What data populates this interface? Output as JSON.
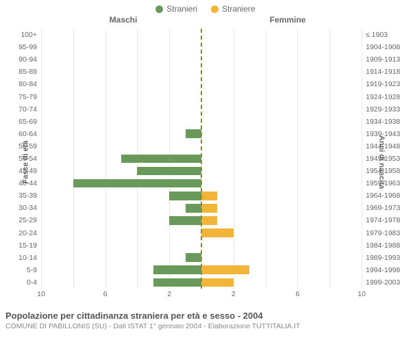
{
  "legend": [
    {
      "label": "Stranieri",
      "color": "#6a9a5b"
    },
    {
      "label": "Straniere",
      "color": "#f2b53a"
    }
  ],
  "headers": {
    "left": "Maschi",
    "right": "Femmine"
  },
  "axis_titles": {
    "left": "Fasce di età",
    "right": "Anni di nascita"
  },
  "chart": {
    "type": "pyramid-bar",
    "max_value": 10,
    "xticks": [
      10,
      6,
      2,
      2,
      6,
      10
    ],
    "xtick_positions_pct": [
      0,
      20,
      40,
      60,
      80,
      100
    ],
    "grid_positions_pct": [
      0,
      10,
      20,
      30,
      40,
      60,
      70,
      80,
      90,
      100
    ],
    "background_color": "#ffffff",
    "grid_color": "#e8e8e8",
    "center_line_color": "#888833",
    "male_color": "#6a9a5b",
    "female_color": "#f2b53a",
    "tick_fontsize": 10.5,
    "label_color": "#666666",
    "rows": [
      {
        "age": "100+",
        "birth": "≤ 1903",
        "male": 0,
        "female": 0
      },
      {
        "age": "95-99",
        "birth": "1904-1908",
        "male": 0,
        "female": 0
      },
      {
        "age": "90-94",
        "birth": "1909-1913",
        "male": 0,
        "female": 0
      },
      {
        "age": "85-89",
        "birth": "1914-1918",
        "male": 0,
        "female": 0
      },
      {
        "age": "80-84",
        "birth": "1919-1923",
        "male": 0,
        "female": 0
      },
      {
        "age": "75-79",
        "birth": "1924-1928",
        "male": 0,
        "female": 0
      },
      {
        "age": "70-74",
        "birth": "1929-1933",
        "male": 0,
        "female": 0
      },
      {
        "age": "65-69",
        "birth": "1934-1938",
        "male": 0,
        "female": 0
      },
      {
        "age": "60-64",
        "birth": "1939-1943",
        "male": 1,
        "female": 0
      },
      {
        "age": "55-59",
        "birth": "1944-1948",
        "male": 0,
        "female": 0
      },
      {
        "age": "50-54",
        "birth": "1949-1953",
        "male": 5,
        "female": 0
      },
      {
        "age": "45-49",
        "birth": "1954-1958",
        "male": 4,
        "female": 0
      },
      {
        "age": "40-44",
        "birth": "1959-1963",
        "male": 8,
        "female": 0
      },
      {
        "age": "35-39",
        "birth": "1964-1968",
        "male": 2,
        "female": 1
      },
      {
        "age": "30-34",
        "birth": "1969-1973",
        "male": 1,
        "female": 1
      },
      {
        "age": "25-29",
        "birth": "1974-1978",
        "male": 2,
        "female": 1
      },
      {
        "age": "20-24",
        "birth": "1979-1983",
        "male": 0,
        "female": 2
      },
      {
        "age": "15-19",
        "birth": "1984-1988",
        "male": 0,
        "female": 0
      },
      {
        "age": "10-14",
        "birth": "1989-1993",
        "male": 1,
        "female": 0
      },
      {
        "age": "5-9",
        "birth": "1994-1998",
        "male": 3,
        "female": 3
      },
      {
        "age": "0-4",
        "birth": "1999-2003",
        "male": 3,
        "female": 2
      }
    ]
  },
  "footer": {
    "title": "Popolazione per cittadinanza straniera per età e sesso - 2004",
    "subtitle": "COMUNE DI PABILLONIS (SU) - Dati ISTAT 1° gennaio 2004 - Elaborazione TUTTITALIA.IT"
  }
}
